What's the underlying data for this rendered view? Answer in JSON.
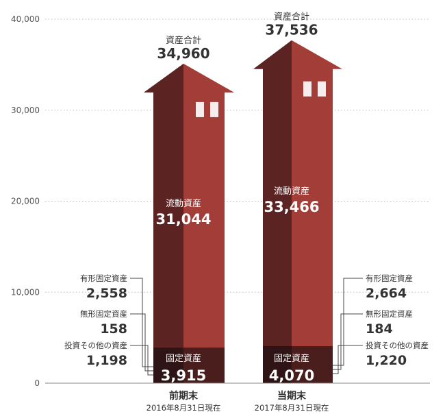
{
  "chart_data": {
    "type": "bar",
    "ylim": [
      0,
      40000
    ],
    "yticks": [
      "0",
      "10,000",
      "20,000",
      "30,000",
      "40,000"
    ],
    "grid": true,
    "colors": {
      "current_dark": "#5c2323",
      "current_light": "#a33d37",
      "fixed_dark": "#2e1414",
      "fixed_light": "#4b1e1e",
      "window": "#f6eeee"
    },
    "categories": [
      {
        "name": "前期末",
        "date": "2016年8月31日現在",
        "total_label": "資産合計",
        "total": 34960,
        "total_text": "34,960",
        "current_label": "流動資産",
        "current": 31044,
        "current_text": "31,044",
        "fixed_label": "固定資産",
        "fixed": 3915,
        "fixed_text": "3,915",
        "breakdown": [
          {
            "label": "有形固定資産",
            "value": 2558,
            "text": "2,558"
          },
          {
            "label": "無形固定資産",
            "value": 158,
            "text": "158"
          },
          {
            "label": "投資その他の資産",
            "value": 1198,
            "text": "1,198"
          }
        ]
      },
      {
        "name": "当期末",
        "date": "2017年8月31日現在",
        "total_label": "資産合計",
        "total": 37536,
        "total_text": "37,536",
        "current_label": "流動資産",
        "current": 33466,
        "current_text": "33,466",
        "fixed_label": "固定資産",
        "fixed": 4070,
        "fixed_text": "4,070",
        "breakdown": [
          {
            "label": "有形固定資産",
            "value": 2664,
            "text": "2,664"
          },
          {
            "label": "無形固定資産",
            "value": 184,
            "text": "184"
          },
          {
            "label": "投資その他の資産",
            "value": 1220,
            "text": "1,220"
          }
        ]
      }
    ]
  }
}
